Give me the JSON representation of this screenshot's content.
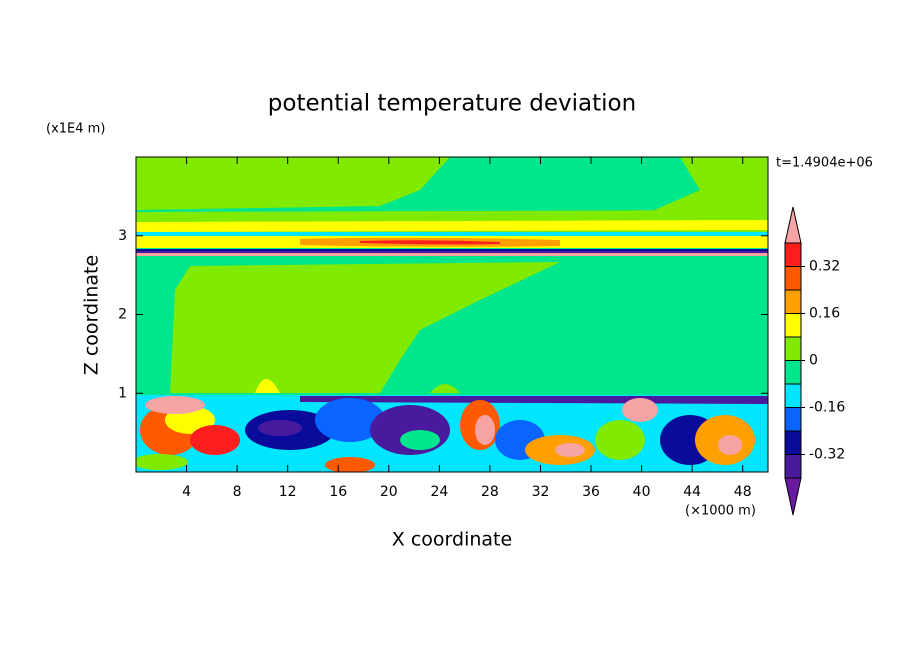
{
  "chart_data": {
    "type": "contour",
    "title": "potential temperature deviation",
    "subtitle": "t=1.4904e+06",
    "x_label": "X coordinate",
    "y_label": "Z coordinate",
    "x_unit": "(×1000 m)",
    "y_unit": "(x1E4 m)",
    "xlim": [
      0,
      50
    ],
    "xticks": [
      4,
      8,
      12,
      16,
      20,
      24,
      28,
      32,
      36,
      40,
      44,
      48
    ],
    "ylim": [
      0,
      4
    ],
    "yticks": [
      1,
      2,
      3
    ],
    "colorbar": {
      "clim": [
        -0.4,
        0.4
      ],
      "ticks": [
        0.32,
        0.16,
        0,
        -0.16,
        -0.32
      ],
      "colors": [
        "#6a1aa0",
        "#4a1a9e",
        "#0b0b9b",
        "#0a64ff",
        "#00e6ff",
        "#00e68c",
        "#80ea00",
        "#ffff00",
        "#ffa000",
        "#ff5a00",
        "#ff1e1e",
        "#f5a3a3"
      ]
    }
  }
}
